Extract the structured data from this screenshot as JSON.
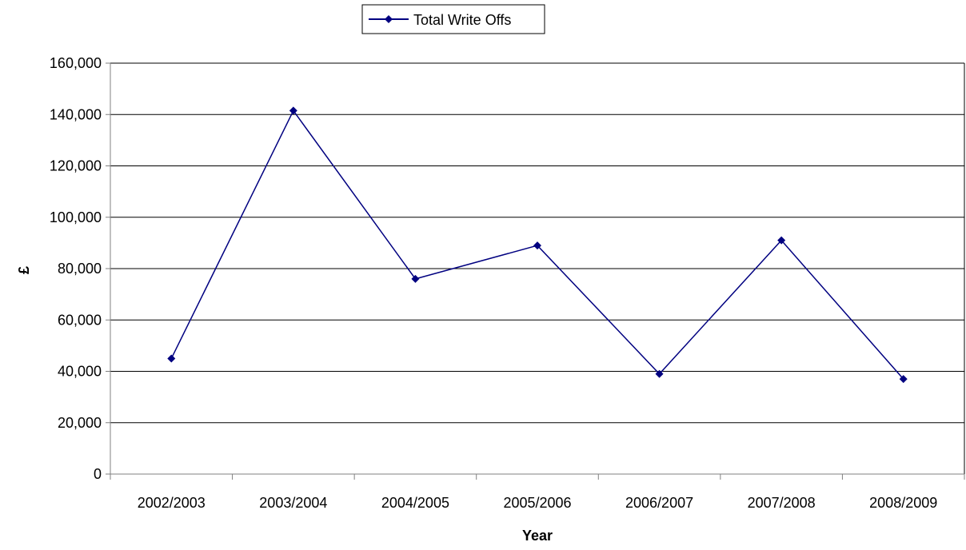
{
  "colors": {
    "series": "#000080",
    "grid": "#000000",
    "axis": "#808080",
    "background": "#ffffff"
  },
  "chart_data": {
    "type": "line",
    "title": "",
    "xlabel": "Year",
    "ylabel": "£",
    "categories": [
      "2002/2003",
      "2003/2004",
      "2004/2005",
      "2005/2006",
      "2006/2007",
      "2007/2008",
      "2008/2009"
    ],
    "series": [
      {
        "name": "Total Write Offs",
        "marker": "diamond",
        "values": [
          45000,
          141500,
          76000,
          89000,
          39000,
          91000,
          37000
        ]
      }
    ],
    "ylim": [
      0,
      160000
    ],
    "yticks": [
      0,
      20000,
      40000,
      60000,
      80000,
      100000,
      120000,
      140000,
      160000
    ],
    "ytick_labels": [
      "0",
      "20,000",
      "40,000",
      "60,000",
      "80,000",
      "100,000",
      "120,000",
      "140,000",
      "160,000"
    ],
    "grid": true,
    "legend_position": "top-center"
  }
}
